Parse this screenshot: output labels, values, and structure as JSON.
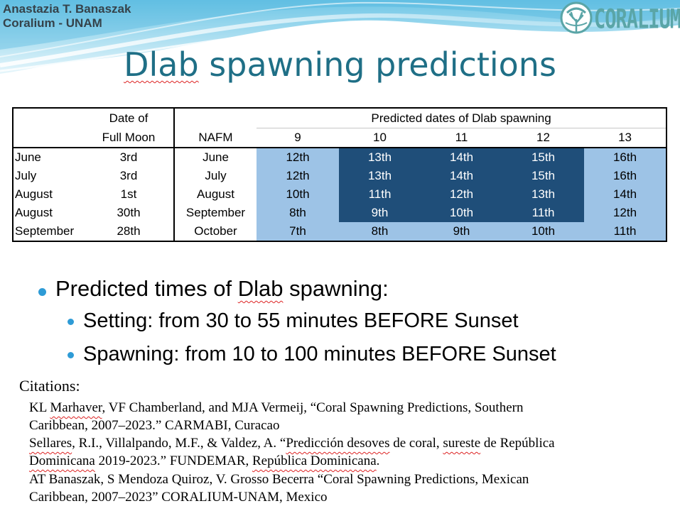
{
  "header": {
    "author_name": "Anastazia T. Banaszak",
    "affiliation": "Coralium - UNAM",
    "logo_text": "CORALIUM",
    "logo_icon": "coral-logo-icon"
  },
  "title": {
    "word1": "Dlab",
    "rest": " spawning predictions"
  },
  "colors": {
    "light_cell": "#9dc3e6",
    "dark_cell": "#1f4e79",
    "title": "#1f6f86",
    "bullet": "#2e9bd6"
  },
  "table": {
    "header1": {
      "date_of": "Date of",
      "predicted": "Predicted dates of Dlab spawning"
    },
    "header2": {
      "full_moon": "Full Moon",
      "nafm": "NAFM",
      "days": [
        "9",
        "10",
        "11",
        "12",
        "13"
      ]
    },
    "rows": [
      {
        "month": "June",
        "full_moon": "3rd",
        "nafm": "June",
        "days": [
          "12th",
          "13th",
          "14th",
          "15th",
          "16th"
        ]
      },
      {
        "month": "July",
        "full_moon": "3rd",
        "nafm": "July",
        "days": [
          "12th",
          "13th",
          "14th",
          "15th",
          "16th"
        ]
      },
      {
        "month": "August",
        "full_moon": "1st",
        "nafm": "August",
        "days": [
          "10th",
          "11th",
          "12th",
          "13th",
          "14th"
        ]
      },
      {
        "month": "August",
        "full_moon": "30th",
        "nafm": "September",
        "days": [
          "8th",
          "9th",
          "10th",
          "11th",
          "12th"
        ]
      },
      {
        "month": "September",
        "full_moon": "28th",
        "nafm": "October",
        "days": [
          "7th",
          "8th",
          "9th",
          "10th",
          "11th"
        ]
      }
    ]
  },
  "bullets": {
    "main": {
      "before": "Predicted times of ",
      "word": "Dlab",
      "after": " spawning:"
    },
    "sub": [
      "Setting: from 30 to 55 minutes BEFORE Sunset",
      "Spawning: from 10 to 100 minutes BEFORE Sunset"
    ]
  },
  "citations": {
    "heading": "Citations:",
    "lines": [
      {
        "pre": "KL ",
        "sq": "Marhaver",
        "post": ", VF Chamberland, and MJA Vermeij, “Coral Spawning Predictions, Southern"
      },
      {
        "pre": "Caribbean, 2007–2023.” CARMABI, Curacao",
        "sq": "",
        "post": ""
      },
      {
        "pre": "",
        "sq": "Sellares",
        "post": ", R.I., Villalpando, M.F., & Valdez, A. “",
        "sq2": "Predicción desoves",
        "post2": " de coral, ",
        "sq3": "sureste",
        "post3": " de República"
      },
      {
        "pre": "",
        "sq": "Dominicana",
        "post": " 2019-2023.” FUNDEMAR, ",
        "sq2": "República Dominicana",
        "post2": "."
      },
      {
        "pre": "AT Banaszak, S Mendoza Quiroz, V. Grosso Becerra “Coral Spawning Predictions, Mexican",
        "sq": "",
        "post": ""
      },
      {
        "pre": "Caribbean, 2007–2023” CORALIUM-UNAM, Mexico",
        "sq": "",
        "post": ""
      }
    ]
  }
}
